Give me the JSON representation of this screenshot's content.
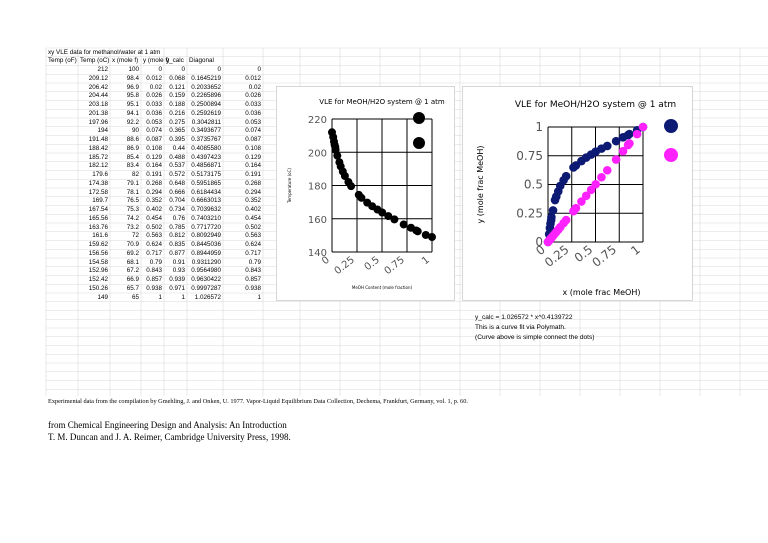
{
  "sheet": {
    "title": "xy VLE data for methanol/water at 1 atm",
    "headers": [
      "Temp (oF)",
      "Temp (oC)",
      "x (mole f)",
      "y (mole f)",
      "y_calc",
      "Diagonal"
    ],
    "rows": [
      [
        "212",
        "100",
        "0",
        "0",
        "0",
        "0"
      ],
      [
        "209.12",
        "98.4",
        "0.012",
        "0.068",
        "0.1645219",
        "0.012"
      ],
      [
        "206.42",
        "96.9",
        "0.02",
        "0.121",
        "0.2033652",
        "0.02"
      ],
      [
        "204.44",
        "95.8",
        "0.026",
        "0.159",
        "0.2265896",
        "0.026"
      ],
      [
        "203.18",
        "95.1",
        "0.033",
        "0.188",
        "0.2500894",
        "0.033"
      ],
      [
        "201.38",
        "94.1",
        "0.036",
        "0.216",
        "0.2592619",
        "0.036"
      ],
      [
        "197.96",
        "92.2",
        "0.053",
        "0.275",
        "0.3042811",
        "0.053"
      ],
      [
        "194",
        "90",
        "0.074",
        "0.365",
        "0.3493677",
        "0.074"
      ],
      [
        "191.48",
        "88.6",
        "0.087",
        "0.395",
        "0.3735767",
        "0.087"
      ],
      [
        "188.42",
        "86.9",
        "0.108",
        "0.44",
        "0.4085580",
        "0.108"
      ],
      [
        "185.72",
        "85.4",
        "0.129",
        "0.488",
        "0.4397423",
        "0.129"
      ],
      [
        "182.12",
        "83.4",
        "0.164",
        "0.537",
        "0.4856871",
        "0.164"
      ],
      [
        "179.6",
        "82",
        "0.191",
        "0.572",
        "0.5173175",
        "0.191"
      ],
      [
        "174.38",
        "79.1",
        "0.268",
        "0.648",
        "0.5951865",
        "0.268"
      ],
      [
        "172.58",
        "78.1",
        "0.294",
        "0.666",
        "0.6184434",
        "0.294"
      ],
      [
        "169.7",
        "76.5",
        "0.352",
        "0.704",
        "0.6663013",
        "0.352"
      ],
      [
        "167.54",
        "75.3",
        "0.402",
        "0.734",
        "0.7039632",
        "0.402"
      ],
      [
        "165.56",
        "74.2",
        "0.454",
        "0.76",
        "0.7403210",
        "0.454"
      ],
      [
        "163.76",
        "73.2",
        "0.502",
        "0.785",
        "0.7717720",
        "0.502"
      ],
      [
        "161.6",
        "72",
        "0.563",
        "0.812",
        "0.8092949",
        "0.563"
      ],
      [
        "159.62",
        "70.9",
        "0.624",
        "0.835",
        "0.8445036",
        "0.624"
      ],
      [
        "156.56",
        "69.2",
        "0.717",
        "0.877",
        "0.8944959",
        "0.717"
      ],
      [
        "154.58",
        "68.1",
        "0.79",
        "0.91",
        "0.9311290",
        "0.79"
      ],
      [
        "152.96",
        "67.2",
        "0.843",
        "0.93",
        "0.9564980",
        "0.843"
      ],
      [
        "152.42",
        "66.9",
        "0.857",
        "0.939",
        "0.9630422",
        "0.857"
      ],
      [
        "150.26",
        "65.7",
        "0.938",
        "0.971",
        "0.9997287",
        "0.938"
      ],
      [
        "149",
        "65",
        "1",
        "1",
        "1.026572",
        "1"
      ]
    ],
    "notes": [
      "y_calc = 1.026572 * x^0.4139722",
      "This is a curve fit via Polymath.",
      "(Curve above is simple connect the dots)"
    ],
    "source": "Experimental data from the compilation by Gmehling, J. and Onken, U. 1977. Vapor-Liquid Equilibrium Data Collection, Dechema, Frankfurt, Germany, vol. 1, p. 60.",
    "citation_line1": "from Chemical Engineering Design and Analysis: An Introduction",
    "citation_line2": "T. M. Duncan and J. A. Reimer, Cambridge University Press, 1998."
  },
  "colors": {
    "series_black": "#000000",
    "series_navy": "#0d1a73",
    "series_magenta": "#ff22ff",
    "grid": "#000000",
    "sheet_grid": "#d9d9d9"
  },
  "chart_data": [
    {
      "type": "scatter",
      "title": "VLE for MeOH/H2O system @ 1 atm",
      "xlabel": "MeOH Content (mole fraction)",
      "ylabel": "Temperature (oC)",
      "xlim": [
        0,
        1
      ],
      "ylim": [
        140,
        220
      ],
      "xticks": [
        "0",
        "0.25",
        "0.5",
        "0.75",
        "1"
      ],
      "yticks": [
        "140",
        "160",
        "180",
        "200",
        "220"
      ],
      "grid": true,
      "legend": "top-right",
      "series": [
        {
          "x": [
            0,
            0.012,
            0.02,
            0.026,
            0.033,
            0.036,
            0.053,
            0.074,
            0.087,
            0.108,
            0.129,
            0.164,
            0.191,
            0.268,
            0.294,
            0.352,
            0.402,
            0.454,
            0.502,
            0.563,
            0.624,
            0.717,
            0.79,
            0.843,
            0.857,
            0.938,
            1
          ],
          "y": [
            212,
            209.12,
            206.42,
            204.44,
            203.18,
            201.38,
            197.96,
            194,
            191.48,
            188.42,
            185.72,
            182.12,
            179.6,
            174.38,
            172.58,
            169.7,
            167.54,
            165.56,
            163.76,
            161.6,
            159.62,
            156.56,
            154.58,
            152.96,
            152.42,
            150.26,
            149
          ]
        },
        {
          "x": [],
          "y": []
        }
      ]
    },
    {
      "type": "scatter",
      "title": "VLE for MeOH/H2O system @ 1 atm",
      "xlabel": "x (mole frac MeOH)",
      "ylabel": "y (mole frac MeOH)",
      "xlim": [
        0,
        1
      ],
      "ylim": [
        0,
        1
      ],
      "xticks": [
        "0",
        "0.25",
        "0.5",
        "0.75",
        "1"
      ],
      "yticks": [
        "0",
        "0.25",
        "0.5",
        "0.75",
        "1"
      ],
      "grid": true,
      "legend": "top-right",
      "series": [
        {
          "x": [
            0,
            0.012,
            0.02,
            0.026,
            0.033,
            0.036,
            0.053,
            0.074,
            0.087,
            0.108,
            0.129,
            0.164,
            0.191,
            0.268,
            0.294,
            0.352,
            0.402,
            0.454,
            0.502,
            0.563,
            0.624,
            0.717,
            0.79,
            0.843,
            0.857,
            0.938,
            1
          ],
          "y": [
            0,
            0.068,
            0.121,
            0.159,
            0.188,
            0.216,
            0.275,
            0.365,
            0.395,
            0.44,
            0.488,
            0.537,
            0.572,
            0.648,
            0.666,
            0.704,
            0.734,
            0.76,
            0.785,
            0.812,
            0.835,
            0.877,
            0.91,
            0.93,
            0.939,
            0.971,
            1
          ]
        },
        {
          "x": [
            0,
            0.012,
            0.02,
            0.026,
            0.033,
            0.036,
            0.053,
            0.074,
            0.087,
            0.108,
            0.129,
            0.164,
            0.191,
            0.268,
            0.294,
            0.352,
            0.402,
            0.454,
            0.502,
            0.563,
            0.624,
            0.717,
            0.79,
            0.843,
            0.857,
            0.938,
            1
          ],
          "y": [
            0,
            0.012,
            0.02,
            0.026,
            0.033,
            0.036,
            0.053,
            0.074,
            0.087,
            0.108,
            0.129,
            0.164,
            0.191,
            0.268,
            0.294,
            0.352,
            0.402,
            0.454,
            0.502,
            0.563,
            0.624,
            0.717,
            0.79,
            0.843,
            0.857,
            0.938,
            1
          ]
        }
      ]
    }
  ]
}
